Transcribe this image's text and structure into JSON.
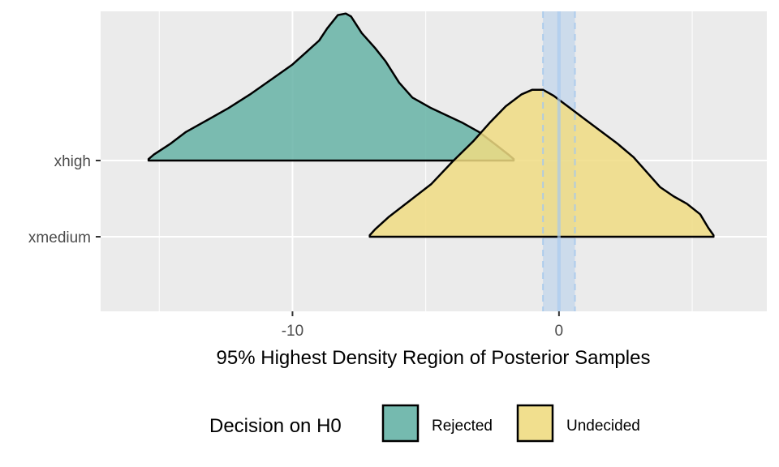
{
  "chart_data": {
    "type": "area",
    "xlabel": "95% Highest Density Region of Posterior Samples",
    "ylabel": "",
    "categories": [
      "xmedium",
      "xhigh"
    ],
    "xlim": [
      -17.2,
      7.8
    ],
    "x_ticks": [
      -10,
      0
    ],
    "x_tick_labels": [
      "-10",
      "0"
    ],
    "x_minor_ticks": [
      -15,
      -5,
      5
    ],
    "grid": true,
    "rope": {
      "center": 0,
      "lower": -0.6,
      "upper": 0.6,
      "color": "#a6c8ec"
    },
    "legend": {
      "title": "Decision on H0",
      "position": "bottom",
      "entries": [
        {
          "label": "Rejected",
          "color": "#66b3a6"
        },
        {
          "label": "Undecided",
          "color": "#f0dc82"
        }
      ]
    },
    "series": [
      {
        "category": "xhigh",
        "decision": "Rejected",
        "color": "#66b3a6",
        "hdi": [
          -15.4,
          -1.7
        ],
        "density": [
          [
            -15.4,
            0.01
          ],
          [
            -15.2,
            0.04
          ],
          [
            -14.6,
            0.11
          ],
          [
            -14,
            0.19
          ],
          [
            -13.2,
            0.27
          ],
          [
            -12.4,
            0.35
          ],
          [
            -11.6,
            0.44
          ],
          [
            -10.8,
            0.54
          ],
          [
            -10,
            0.64
          ],
          [
            -9.5,
            0.72
          ],
          [
            -9,
            0.8
          ],
          [
            -8.7,
            0.88
          ],
          [
            -8.3,
            0.97
          ],
          [
            -8,
            0.98
          ],
          [
            -7.8,
            0.96
          ],
          [
            -7.4,
            0.85
          ],
          [
            -6.9,
            0.75
          ],
          [
            -6.5,
            0.66
          ],
          [
            -6,
            0.52
          ],
          [
            -5.5,
            0.42
          ],
          [
            -4.8,
            0.35
          ],
          [
            -4.2,
            0.3
          ],
          [
            -3.6,
            0.25
          ],
          [
            -3,
            0.19
          ],
          [
            -2.4,
            0.11
          ],
          [
            -1.9,
            0.04
          ],
          [
            -1.7,
            0.01
          ]
        ]
      },
      {
        "category": "xmedium",
        "decision": "Undecided",
        "color": "#f0dc82",
        "hdi": [
          -7.1,
          5.8
        ],
        "density": [
          [
            -7.1,
            0.01
          ],
          [
            -6.9,
            0.05
          ],
          [
            -6.4,
            0.13
          ],
          [
            -5.6,
            0.24
          ],
          [
            -4.8,
            0.35
          ],
          [
            -4,
            0.5
          ],
          [
            -3.2,
            0.64
          ],
          [
            -2.6,
            0.76
          ],
          [
            -2,
            0.87
          ],
          [
            -1.4,
            0.95
          ],
          [
            -1,
            0.98
          ],
          [
            -0.6,
            0.98
          ],
          [
            -0.2,
            0.94
          ],
          [
            0.4,
            0.86
          ],
          [
            1,
            0.78
          ],
          [
            1.6,
            0.7
          ],
          [
            2.2,
            0.62
          ],
          [
            2.8,
            0.53
          ],
          [
            3.3,
            0.43
          ],
          [
            3.8,
            0.33
          ],
          [
            4.3,
            0.27
          ],
          [
            4.8,
            0.22
          ],
          [
            5.3,
            0.15
          ],
          [
            5.6,
            0.06
          ],
          [
            5.8,
            0.01
          ]
        ]
      }
    ]
  }
}
